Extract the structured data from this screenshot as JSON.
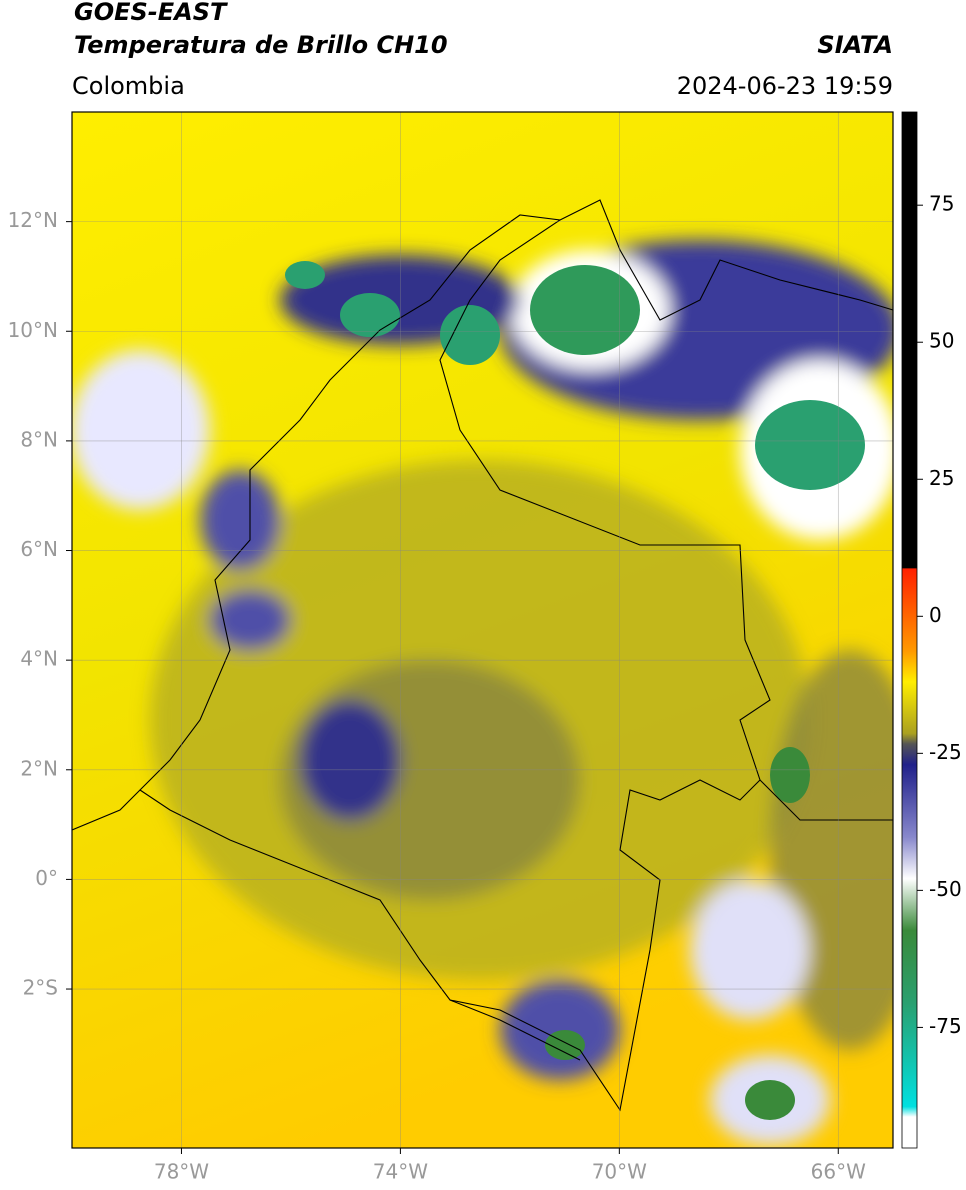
{
  "header": {
    "title": "GOES-EAST",
    "subtitle": "Temperatura de Brillo CH10",
    "region": "Colombia",
    "source": "SIATA",
    "datetime": "2024-06-23 19:59"
  },
  "map": {
    "xlim": [
      -80,
      -65
    ],
    "ylim": [
      -4.9,
      14
    ],
    "xticks": [
      {
        "value": -78,
        "label": "78°W"
      },
      {
        "value": -74,
        "label": "74°W"
      },
      {
        "value": -70,
        "label": "70°W"
      },
      {
        "value": -66,
        "label": "66°W"
      }
    ],
    "yticks": [
      {
        "value": 12,
        "label": "12°N"
      },
      {
        "value": 10,
        "label": "10°N"
      },
      {
        "value": 8,
        "label": "8°N"
      },
      {
        "value": 6,
        "label": "6°N"
      },
      {
        "value": 4,
        "label": "4°N"
      },
      {
        "value": 2,
        "label": "2°N"
      },
      {
        "value": 0,
        "label": "0°"
      },
      {
        "value": -2,
        "label": "2°S"
      }
    ],
    "grid": true
  },
  "colorbar": {
    "lim": [
      -97,
      92
    ],
    "ticks": [
      75,
      50,
      25,
      0,
      -25,
      -50,
      -75
    ]
  }
}
